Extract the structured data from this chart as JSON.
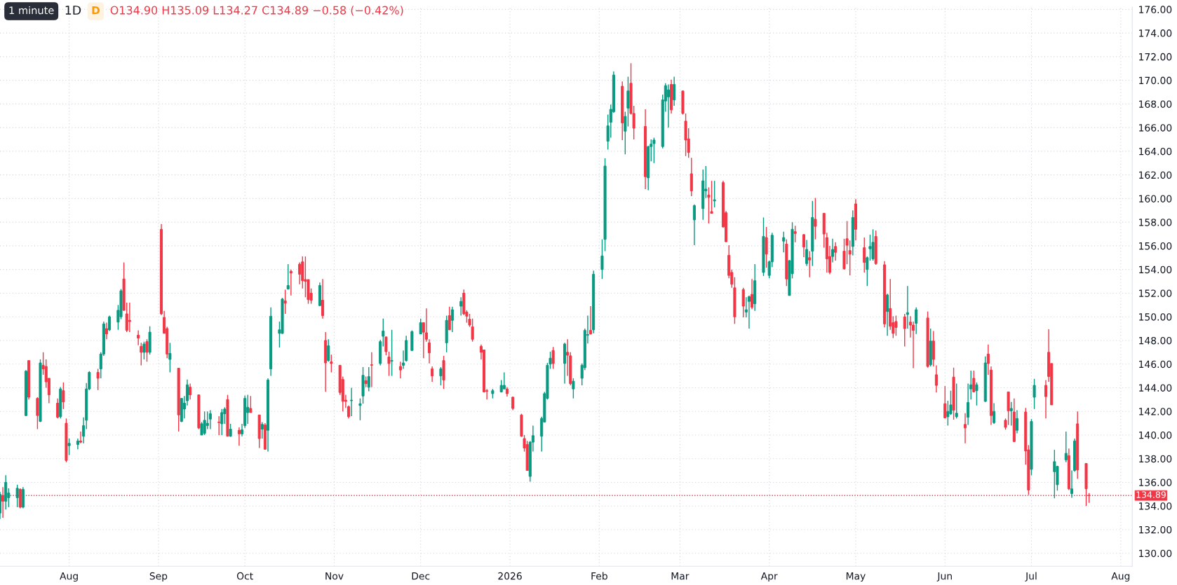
{
  "chart_data": {
    "type": "candlestick",
    "annotations": [
      "1 minute",
      "1D",
      "D",
      "O134.90 H135.09 L134.27 C134.89 −0.58 (−0.42%)"
    ],
    "x": [
      "2025-07-08",
      "2025-07-09",
      "2025-07-10",
      "2025-07-11",
      "2025-07-14",
      "2025-07-15",
      "2025-07-16",
      "2025-07-17",
      "2025-07-18",
      "2025-07-21",
      "2025-07-22",
      "2025-07-23",
      "2025-07-24",
      "2025-07-25",
      "2025-07-28",
      "2025-07-29",
      "2025-07-30",
      "2025-07-31",
      "2025-08-01",
      "2025-08-04",
      "2025-08-05",
      "2025-08-06",
      "2025-08-07",
      "2025-08-08",
      "2025-08-11",
      "2025-08-12",
      "2025-08-13",
      "2025-08-14",
      "2025-08-15",
      "2025-08-18",
      "2025-08-19",
      "2025-08-20",
      "2025-08-21",
      "2025-08-22",
      "2025-08-25",
      "2025-08-26",
      "2025-08-27",
      "2025-08-28",
      "2025-08-29",
      "2025-09-02",
      "2025-09-03",
      "2025-09-04",
      "2025-09-05",
      "2025-09-08",
      "2025-09-09",
      "2025-09-10",
      "2025-09-11",
      "2025-09-12",
      "2025-09-15",
      "2025-09-16",
      "2025-09-17",
      "2025-09-18",
      "2025-09-19",
      "2025-09-22",
      "2025-09-23",
      "2025-09-24",
      "2025-09-25",
      "2025-09-26",
      "2025-09-29",
      "2025-09-30",
      "2025-10-01",
      "2025-10-02",
      "2025-10-03",
      "2025-10-06",
      "2025-10-07",
      "2025-10-08",
      "2025-10-09",
      "2025-10-10",
      "2025-10-13",
      "2025-10-14",
      "2025-10-15",
      "2025-10-16",
      "2025-10-17",
      "2025-10-20",
      "2025-10-21",
      "2025-10-22",
      "2025-10-23",
      "2025-10-24",
      "2025-10-27",
      "2025-10-28",
      "2025-10-29",
      "2025-10-30",
      "2025-10-31",
      "2025-11-03",
      "2025-11-04",
      "2025-11-05",
      "2025-11-06",
      "2025-11-07",
      "2025-11-10",
      "2025-11-11",
      "2025-11-12",
      "2025-11-13",
      "2025-11-14",
      "2025-11-17",
      "2025-11-18",
      "2025-11-19",
      "2025-11-20",
      "2025-11-21",
      "2025-11-24",
      "2025-11-25",
      "2025-11-26",
      "2025-11-28",
      "2025-12-01",
      "2025-12-02",
      "2025-12-03",
      "2025-12-04",
      "2025-12-05",
      "2025-12-08",
      "2025-12-09",
      "2025-12-10",
      "2025-12-11",
      "2025-12-12",
      "2025-12-15",
      "2025-12-16",
      "2025-12-17",
      "2025-12-18",
      "2025-12-19",
      "2025-12-22",
      "2025-12-23",
      "2025-12-24",
      "2025-12-26",
      "2025-12-29",
      "2025-12-30",
      "2025-12-31",
      "2026-01-02",
      "2026-01-05",
      "2026-01-06",
      "2026-01-07",
      "2026-01-08",
      "2026-01-09",
      "2026-01-12",
      "2026-01-13",
      "2026-01-14",
      "2026-01-15",
      "2026-01-16",
      "2026-01-20",
      "2026-01-21",
      "2026-01-22",
      "2026-01-23",
      "2026-01-26",
      "2026-01-27",
      "2026-01-28",
      "2026-01-29",
      "2026-01-30",
      "2026-02-02",
      "2026-02-03",
      "2026-02-04",
      "2026-02-05",
      "2026-02-06",
      "2026-02-09",
      "2026-02-10",
      "2026-02-11",
      "2026-02-12",
      "2026-02-13",
      "2026-02-17",
      "2026-02-18",
      "2026-02-19",
      "2026-02-20",
      "2026-02-23",
      "2026-02-24",
      "2026-02-25",
      "2026-02-26",
      "2026-02-27",
      "2026-03-02",
      "2026-03-03",
      "2026-03-04",
      "2026-03-05",
      "2026-03-06",
      "2026-03-09",
      "2026-03-10",
      "2026-03-11",
      "2026-03-12",
      "2026-03-13",
      "2026-03-16",
      "2026-03-17",
      "2026-03-18",
      "2026-03-19",
      "2026-03-20",
      "2026-03-23",
      "2026-03-24",
      "2026-03-25",
      "2026-03-26",
      "2026-03-27",
      "2026-03-30",
      "2026-03-31",
      "2026-04-01",
      "2026-04-02",
      "2026-04-06",
      "2026-04-07",
      "2026-04-08",
      "2026-04-09",
      "2026-04-10",
      "2026-04-13",
      "2026-04-14",
      "2026-04-15",
      "2026-04-16",
      "2026-04-17",
      "2026-04-20",
      "2026-04-21",
      "2026-04-22",
      "2026-04-23",
      "2026-04-24",
      "2026-04-27",
      "2026-04-28",
      "2026-04-29",
      "2026-04-30",
      "2026-05-01",
      "2026-05-04",
      "2026-05-05",
      "2026-05-06",
      "2026-05-07",
      "2026-05-08",
      "2026-05-11",
      "2026-05-12",
      "2026-05-13",
      "2026-05-14",
      "2026-05-15",
      "2026-05-18",
      "2026-05-19",
      "2026-05-20",
      "2026-05-21",
      "2026-05-22",
      "2026-05-26",
      "2026-05-27",
      "2026-05-28",
      "2026-05-29",
      "2026-06-01",
      "2026-06-02",
      "2026-06-03",
      "2026-06-04",
      "2026-06-05",
      "2026-06-08",
      "2026-06-09",
      "2026-06-10",
      "2026-06-11",
      "2026-06-12",
      "2026-06-15",
      "2026-06-16",
      "2026-06-17",
      "2026-06-18",
      "2026-06-22",
      "2026-06-23",
      "2026-06-24",
      "2026-06-25",
      "2026-06-26",
      "2026-06-29",
      "2026-06-30",
      "2026-07-01",
      "2026-07-02",
      "2026-07-06",
      "2026-07-07",
      "2026-07-08",
      "2026-07-09",
      "2026-07-10",
      "2026-07-13",
      "2026-07-14",
      "2026-07-15",
      "2026-07-16",
      "2026-07-17",
      "2026-07-20",
      "2026-07-21"
    ],
    "ohlc": [
      [
        133.4,
        135.2,
        132.9,
        135.0
      ],
      [
        134.9,
        135.6,
        133.0,
        134.4
      ],
      [
        134.4,
        136.6,
        133.7,
        136.0
      ],
      [
        134.7,
        135.5,
        133.9,
        135.1
      ],
      [
        134.7,
        135.8,
        133.9,
        135.5
      ],
      [
        135.4,
        135.5,
        133.8,
        133.9
      ],
      [
        133.9,
        135.6,
        133.8,
        135.4
      ],
      [
        141.65,
        145.5,
        141.6,
        145.4
      ],
      [
        146.3,
        146.3,
        143.0,
        143.2
      ],
      [
        143.1,
        143.2,
        140.5,
        141.65
      ],
      [
        141.15,
        146.4,
        141.1,
        146.1
      ],
      [
        145.9,
        147.0,
        145.1,
        145.6
      ],
      [
        145.8,
        146.4,
        144.0,
        144.5
      ],
      [
        144.8,
        144.8,
        142.7,
        143.4
      ],
      [
        142.7,
        143.1,
        141.4,
        141.5
      ],
      [
        141.55,
        144.05,
        141.4,
        143.9
      ],
      [
        143.75,
        144.45,
        142.2,
        142.8
      ],
      [
        141.0,
        141.4,
        137.7,
        137.85
      ],
      [
        139.1,
        139.7,
        138.3,
        139.3
      ],
      [
        139.2,
        139.7,
        138.8,
        139.5
      ],
      [
        139.5,
        140.3,
        139.3,
        139.4
      ],
      [
        139.9,
        141.5,
        139.3,
        140.8
      ],
      [
        141.25,
        144.4,
        140.5,
        143.9
      ],
      [
        143.9,
        145.4,
        143.8,
        145.3
      ],
      [
        145.3,
        145.6,
        143.8,
        144.8
      ],
      [
        145.6,
        147.0,
        144.8,
        146.85
      ],
      [
        146.85,
        149.6,
        146.7,
        149.4
      ],
      [
        149.0,
        149.5,
        148.1,
        148.55
      ],
      [
        148.9,
        150.1,
        148.8,
        150.0
      ],
      [
        149.55,
        151.0,
        148.9,
        150.55
      ],
      [
        150.0,
        152.35,
        149.8,
        152.2
      ],
      [
        153.2,
        154.6,
        150.5,
        150.55
      ],
      [
        150.25,
        151.2,
        148.7,
        148.85
      ],
      [
        149.7,
        151.2,
        148.7,
        149.6
      ],
      [
        148.45,
        148.85,
        147.6,
        148.2
      ],
      [
        147.5,
        147.8,
        145.9,
        147.0
      ],
      [
        147.0,
        147.9,
        146.4,
        147.7
      ],
      [
        147.9,
        148.1,
        146.2,
        147.0
      ],
      [
        147.0,
        149.2,
        146.8,
        148.7
      ],
      [
        157.4,
        157.85,
        150.15,
        150.25
      ],
      [
        149.95,
        150.5,
        148.6,
        148.6
      ],
      [
        149.0,
        149.15,
        146.5,
        146.85
      ],
      [
        146.4,
        147.8,
        145.3,
        146.9
      ],
      [
        145.65,
        145.65,
        140.3,
        141.7
      ],
      [
        141.15,
        143.1,
        141.1,
        143.1
      ],
      [
        142.2,
        143.3,
        141.4,
        142.7
      ],
      [
        142.9,
        144.7,
        142.5,
        144.25
      ],
      [
        144.05,
        144.35,
        143.0,
        143.4
      ],
      [
        143.4,
        143.4,
        140.5,
        140.6
      ],
      [
        140.0,
        141.1,
        140.0,
        140.95
      ],
      [
        140.15,
        142.0,
        140.0,
        141.25
      ],
      [
        140.8,
        142.0,
        140.5,
        141.0
      ],
      [
        141.35,
        142.1,
        140.5,
        141.8
      ],
      [
        141.1,
        141.6,
        140.0,
        141.05
      ],
      [
        140.95,
        142.2,
        140.0,
        141.9
      ],
      [
        141.8,
        142.35,
        140.95,
        142.2
      ],
      [
        143.0,
        143.4,
        139.9,
        139.9
      ],
      [
        139.9,
        140.95,
        139.85,
        140.5
      ],
      [
        140.4,
        140.65,
        139.1,
        140.1
      ],
      [
        140.1,
        140.95,
        139.9,
        140.45
      ],
      [
        140.8,
        143.35,
        140.6,
        143.1
      ],
      [
        141.9,
        143.4,
        140.95,
        142.35
      ],
      [
        142.25,
        143.3,
        141.9,
        141.9
      ],
      [
        141.7,
        141.7,
        138.9,
        139.7
      ],
      [
        140.5,
        141.1,
        139.7,
        140.9
      ],
      [
        140.85,
        141.0,
        138.75,
        138.8
      ],
      [
        140.4,
        144.8,
        138.6,
        144.65
      ],
      [
        145.6,
        150.8,
        145.0,
        150.05
      ],
      [
        148.6,
        149.6,
        147.4,
        148.9
      ],
      [
        148.6,
        151.6,
        148.55,
        151.5
      ],
      [
        151.35,
        152.3,
        150.25,
        151.15
      ],
      [
        152.35,
        154.45,
        152.3,
        152.65
      ],
      [
        153.85,
        154.0,
        151.8,
        153.7
      ],
      [
        154.45,
        154.6,
        152.75,
        153.6
      ],
      [
        154.65,
        155.1,
        152.4,
        153.05
      ],
      [
        153.15,
        155.1,
        151.65,
        153.0
      ],
      [
        153.15,
        153.15,
        151.1,
        151.45
      ],
      [
        152.0,
        152.4,
        151.1,
        151.4
      ],
      [
        150.95,
        152.9,
        150.9,
        152.65
      ],
      [
        151.4,
        153.2,
        149.85,
        150.1
      ],
      [
        148.0,
        148.7,
        143.65,
        146.1
      ],
      [
        146.3,
        148.1,
        146.2,
        147.55
      ],
      [
        146.2,
        146.8,
        145.3,
        146.05
      ],
      [
        145.9,
        145.9,
        143.4,
        143.6
      ],
      [
        144.7,
        144.95,
        142.0,
        142.85
      ],
      [
        142.95,
        143.4,
        142.3,
        142.85
      ],
      [
        142.4,
        142.5,
        141.4,
        141.55
      ],
      [
        142.9,
        144.0,
        141.6,
        142.95
      ],
      [
        142.5,
        143.1,
        141.25,
        142.65
      ],
      [
        143.3,
        145.75,
        142.65,
        145.05
      ],
      [
        144.6,
        144.95,
        144.05,
        144.35
      ],
      [
        144.05,
        145.75,
        143.7,
        144.95
      ],
      [
        145.95,
        147.0,
        144.05,
        145.9
      ],
      [
        146.05,
        148.05,
        145.9,
        147.9
      ],
      [
        148.35,
        149.85,
        147.5,
        148.8
      ],
      [
        148.3,
        148.3,
        146.75,
        147.05
      ],
      [
        146.6,
        147.05,
        145.0,
        146.05
      ],
      [
        146.25,
        148.9,
        145.0,
        146.3
      ],
      [
        145.8,
        146.2,
        144.8,
        145.5
      ],
      [
        145.9,
        147.15,
        145.6,
        146.1
      ],
      [
        146.3,
        148.4,
        146.2,
        148.0
      ],
      [
        147.15,
        148.85,
        147.15,
        148.75
      ],
      [
        148.55,
        149.85,
        148.55,
        149.5
      ],
      [
        149.5,
        149.5,
        146.5,
        148.7
      ],
      [
        148.65,
        150.7,
        147.9,
        148.1
      ],
      [
        147.8,
        148.1,
        146.05,
        146.95
      ],
      [
        145.6,
        145.8,
        144.5,
        145.0
      ],
      [
        145.0,
        145.75,
        144.2,
        145.6
      ],
      [
        146.3,
        146.7,
        143.9,
        144.65
      ],
      [
        147.8,
        150.1,
        147.0,
        149.7
      ],
      [
        150.1,
        150.85,
        148.9,
        148.9
      ],
      [
        149.7,
        150.85,
        148.7,
        150.6
      ],
      [
        150.9,
        151.65,
        150.1,
        151.3
      ],
      [
        152.0,
        152.3,
        150.15,
        150.25
      ],
      [
        150.4,
        150.55,
        149.5,
        150.05
      ],
      [
        149.8,
        150.25,
        149.15,
        149.3
      ],
      [
        149.15,
        149.85,
        147.9,
        148.1
      ],
      [
        147.5,
        147.65,
        146.4,
        147.0
      ],
      [
        147.2,
        147.2,
        143.6,
        143.65
      ],
      [
        143.75,
        143.9,
        143.0,
        143.7
      ],
      [
        143.5,
        143.9,
        143.1,
        143.75
      ],
      [
        143.65,
        144.65,
        143.6,
        144.2
      ],
      [
        143.9,
        145.3,
        143.9,
        144.2
      ],
      [
        143.9,
        144.05,
        143.25,
        143.5
      ],
      [
        143.2,
        143.25,
        142.1,
        142.25
      ],
      [
        141.7,
        141.8,
        139.85,
        139.9
      ],
      [
        139.7,
        140.0,
        138.6,
        138.9
      ],
      [
        139.2,
        139.5,
        137.0,
        137.0
      ],
      [
        136.5,
        139.5,
        136.05,
        139.4
      ],
      [
        139.4,
        140.8,
        138.6,
        139.95
      ],
      [
        139.9,
        141.55,
        138.6,
        141.4
      ],
      [
        141.1,
        143.65,
        141.1,
        143.5
      ],
      [
        143.1,
        146.1,
        143.0,
        145.9
      ],
      [
        146.0,
        147.05,
        145.6,
        146.5
      ],
      [
        147.15,
        147.45,
        145.6,
        146.05
      ],
      [
        146.05,
        147.8,
        144.35,
        147.7
      ],
      [
        147.0,
        148.1,
        145.0,
        146.75
      ],
      [
        146.7,
        147.0,
        144.2,
        144.35
      ],
      [
        143.9,
        144.8,
        143.1,
        144.55
      ],
      [
        144.8,
        146.05,
        144.2,
        145.9
      ],
      [
        145.7,
        149.0,
        145.5,
        148.85
      ],
      [
        148.45,
        150.1,
        147.75,
        148.5
      ],
      [
        148.85,
        150.9,
        148.5,
        148.55
      ],
      [
        148.9,
        153.9,
        148.6,
        153.6
      ],
      [
        154.0,
        156.55,
        153.2,
        155.15
      ],
      [
        156.55,
        163.4,
        155.55,
        162.75
      ],
      [
        164.85,
        167.1,
        164.15,
        166.15
      ],
      [
        166.45,
        167.95,
        165.15,
        167.55
      ],
      [
        167.35,
        170.75,
        167.25,
        170.45
      ],
      [
        169.5,
        169.9,
        164.95,
        166.4
      ],
      [
        165.7,
        167.35,
        163.75,
        166.95
      ],
      [
        167.65,
        170.3,
        166.1,
        169.1
      ],
      [
        169.75,
        171.45,
        167.1,
        167.2
      ],
      [
        167.2,
        167.85,
        165.0,
        165.95
      ],
      [
        166.1,
        167.55,
        160.8,
        161.85
      ],
      [
        161.75,
        164.45,
        160.7,
        164.4
      ],
      [
        164.4,
        165.0,
        163.15,
        164.6
      ],
      [
        164.65,
        165.15,
        163.0,
        164.95
      ],
      [
        164.4,
        168.8,
        164.25,
        168.35
      ],
      [
        168.25,
        169.75,
        167.35,
        169.55
      ],
      [
        168.6,
        169.65,
        166.0,
        169.2
      ],
      [
        169.65,
        170.05,
        167.2,
        167.5
      ],
      [
        168.35,
        170.3,
        167.85,
        169.65
      ],
      [
        169.1,
        169.1,
        167.1,
        167.2
      ],
      [
        166.55,
        167.2,
        163.6,
        164.95
      ],
      [
        165.05,
        165.95,
        163.45,
        163.9
      ],
      [
        162.1,
        163.45,
        160.2,
        160.65
      ],
      [
        158.2,
        159.5,
        156.05,
        159.4
      ],
      [
        159.15,
        162.45,
        158.2,
        161.5
      ],
      [
        160.65,
        162.75,
        160.05,
        160.8
      ],
      [
        160.3,
        160.95,
        157.9,
        160.1
      ],
      [
        158.9,
        161.5,
        158.75,
        158.75
      ],
      [
        159.8,
        161.5,
        159.25,
        159.9
      ],
      [
        161.35,
        161.5,
        157.55,
        157.6
      ],
      [
        158.8,
        158.95,
        156.3,
        156.35
      ],
      [
        155.2,
        156.05,
        153.25,
        153.5
      ],
      [
        153.75,
        154.0,
        152.45,
        152.75
      ],
      [
        152.45,
        153.35,
        149.4,
        150.0
      ],
      [
        152.3,
        152.45,
        149.95,
        150.9
      ],
      [
        150.4,
        151.65,
        149.95,
        150.6
      ],
      [
        151.3,
        151.8,
        149.0,
        151.7
      ],
      [
        151.9,
        153.2,
        150.65,
        150.8
      ],
      [
        151.1,
        154.45,
        150.5,
        153.05
      ],
      [
        153.75,
        158.4,
        153.45,
        156.8
      ],
      [
        156.7,
        157.6,
        154.15,
        155.3
      ],
      [
        153.5,
        154.75,
        153.25,
        154.65
      ],
      [
        154.65,
        157.1,
        154.2,
        156.9
      ],
      [
        156.4,
        157.2,
        155.45,
        156.7
      ],
      [
        156.15,
        156.55,
        152.6,
        153.2
      ],
      [
        151.8,
        154.8,
        151.8,
        154.75
      ],
      [
        153.65,
        158.0,
        153.25,
        157.4
      ],
      [
        157.2,
        157.7,
        156.3,
        157.05
      ],
      [
        156.95,
        157.0,
        155.05,
        155.9
      ],
      [
        154.5,
        156.5,
        154.3,
        155.7
      ],
      [
        155.0,
        155.55,
        153.35,
        154.8
      ],
      [
        155.55,
        159.8,
        154.3,
        158.4
      ],
      [
        158.25,
        160.05,
        156.55,
        157.65
      ],
      [
        158.75,
        158.8,
        155.85,
        157.0
      ],
      [
        156.7,
        157.1,
        153.75,
        154.9
      ],
      [
        155.1,
        156.0,
        153.6,
        153.75
      ],
      [
        155.1,
        156.6,
        154.6,
        155.7
      ],
      [
        155.95,
        156.3,
        154.75,
        155.45
      ],
      [
        155.55,
        156.6,
        154.0,
        154.05
      ],
      [
        156.6,
        158.1,
        154.45,
        156.05
      ],
      [
        155.6,
        156.45,
        153.5,
        155.3
      ],
      [
        155.95,
        159.0,
        155.2,
        158.4
      ],
      [
        159.55,
        159.95,
        156.45,
        157.4
      ],
      [
        155.85,
        156.7,
        153.75,
        154.6
      ],
      [
        154.0,
        155.1,
        152.6,
        155.0
      ],
      [
        155.75,
        156.95,
        154.75,
        155.95
      ],
      [
        154.9,
        157.4,
        154.75,
        156.3
      ],
      [
        156.8,
        157.3,
        154.4,
        154.5
      ],
      [
        154.4,
        154.7,
        149.1,
        149.4
      ],
      [
        150.45,
        151.95,
        148.4,
        151.85
      ],
      [
        150.7,
        153.2,
        148.9,
        149.2
      ],
      [
        149.5,
        150.05,
        148.2,
        148.6
      ],
      [
        149.6,
        150.1,
        148.4,
        149.1
      ],
      [
        150.0,
        150.25,
        147.5,
        149.0
      ],
      [
        150.2,
        152.6,
        149.0,
        150.35
      ],
      [
        149.55,
        150.05,
        148.25,
        149.3
      ],
      [
        149.3,
        149.6,
        145.65,
        148.85
      ],
      [
        149.45,
        150.8,
        148.55,
        150.6
      ],
      [
        149.9,
        150.45,
        145.7,
        145.8
      ],
      [
        145.95,
        149.0,
        145.8,
        147.95
      ],
      [
        147.95,
        148.8,
        145.8,
        146.4
      ],
      [
        145.1,
        145.9,
        143.6,
        144.2
      ],
      [
        142.65,
        144.15,
        141.4,
        141.45
      ],
      [
        141.55,
        142.9,
        140.8,
        142.0
      ],
      [
        141.8,
        143.75,
        141.7,
        142.55
      ],
      [
        144.9,
        145.7,
        141.3,
        142.1
      ],
      [
        141.55,
        144.35,
        141.4,
        141.85
      ],
      [
        140.9,
        141.85,
        139.3,
        140.6
      ],
      [
        141.5,
        144.35,
        140.85,
        142.75
      ],
      [
        143.9,
        145.45,
        143.0,
        144.25
      ],
      [
        144.8,
        145.45,
        143.6,
        143.65
      ],
      [
        143.75,
        144.45,
        142.5,
        144.25
      ],
      [
        142.85,
        146.65,
        142.8,
        146.1
      ],
      [
        146.85,
        147.65,
        145.1,
        146.05
      ],
      [
        145.5,
        145.8,
        140.85,
        141.65
      ],
      [
        141.05,
        142.7,
        140.95,
        142.0
      ],
      [
        141.25,
        141.4,
        140.45,
        140.65
      ],
      [
        143.65,
        143.65,
        140.85,
        142.05
      ],
      [
        142.05,
        142.8,
        140.8,
        142.25
      ],
      [
        141.95,
        143.1,
        139.4,
        139.45
      ],
      [
        140.4,
        142.1,
        140.15,
        141.4
      ],
      [
        141.95,
        142.3,
        137.5,
        138.65
      ],
      [
        138.75,
        139.15,
        134.95,
        135.35
      ],
      [
        137.1,
        141.35,
        136.6,
        141.15
      ],
      [
        143.2,
        144.75,
        142.2,
        144.2
      ],
      [
        144.2,
        144.65,
        141.4,
        143.25
      ],
      [
        147.0,
        148.95,
        144.5,
        144.95
      ],
      [
        146.05,
        146.05,
        142.55,
        142.55
      ],
      [
        136.9,
        138.75,
        134.65,
        137.75
      ],
      [
        135.8,
        137.4,
        135.3,
        137.35
      ],
      [
        137.9,
        140.3,
        137.7,
        138.45
      ],
      [
        138.25,
        138.85,
        135.35,
        135.45
      ],
      [
        135.05,
        137.0,
        134.7,
        135.45
      ],
      [
        137.0,
        139.7,
        136.9,
        139.5
      ],
      [
        140.95,
        142.0,
        136.3,
        137.05
      ],
      [
        137.6,
        137.6,
        134.0,
        135.45
      ],
      [
        134.9,
        135.09,
        134.27,
        134.89
      ]
    ],
    "colors": [
      "#089981",
      "#f23645",
      "#089981",
      "#089981",
      "#089981",
      "#f23645",
      "#089981",
      "#089981",
      "#f23645",
      "#f23645",
      "#089981",
      "#f23645",
      "#f23645",
      "#f23645",
      "#f23645",
      "#089981",
      "#f23645",
      "#f23645",
      "#089981",
      "#089981",
      "#f23645",
      "#089981",
      "#089981",
      "#089981",
      "#f23645",
      "#089981",
      "#089981",
      "#f23645",
      "#089981",
      "#089981",
      "#089981",
      "#f23645",
      "#f23645",
      "#f23645",
      "#f23645",
      "#f23645",
      "#089981",
      "#f23645",
      "#089981",
      "#f23645",
      "#f23645",
      "#f23645",
      "#089981",
      "#f23645",
      "#089981",
      "#089981",
      "#089981",
      "#f23645",
      "#f23645",
      "#089981",
      "#089981",
      "#089981",
      "#089981",
      "#f23645",
      "#089981",
      "#089981",
      "#f23645",
      "#089981",
      "#f23645",
      "#089981",
      "#089981",
      "#089981",
      "#f23645",
      "#f23645",
      "#089981",
      "#f23645",
      "#089981",
      "#089981",
      "#089981",
      "#089981",
      "#f23645",
      "#089981",
      "#f23645",
      "#f23645",
      "#f23645",
      "#f23645",
      "#f23645",
      "#f23645",
      "#089981",
      "#f23645",
      "#f23645",
      "#089981",
      "#f23645",
      "#f23645",
      "#f23645",
      "#f23645",
      "#f23645",
      "#089981",
      "#089981",
      "#089981",
      "#f23645",
      "#089981",
      "#f23645",
      "#089981",
      "#089981",
      "#f23645",
      "#f23645",
      "#089981",
      "#f23645",
      "#089981",
      "#089981",
      "#089981",
      "#089981",
      "#f23645",
      "#f23645",
      "#f23645",
      "#f23645",
      "#089981",
      "#f23645",
      "#089981",
      "#f23645",
      "#089981",
      "#089981",
      "#f23645",
      "#f23645",
      "#f23645",
      "#f23645",
      "#f23645",
      "#f23645",
      "#f23645",
      "#089981",
      "#089981",
      "#089981",
      "#f23645",
      "#f23645",
      "#f23645",
      "#f23645",
      "#f23645",
      "#089981",
      "#089981",
      "#089981",
      "#089981",
      "#089981",
      "#089981",
      "#f23645",
      "#089981",
      "#f23645",
      "#f23645",
      "#089981",
      "#089981",
      "#089981",
      "#089981",
      "#f23645",
      "#089981",
      "#089981",
      "#089981",
      "#089981",
      "#089981",
      "#089981",
      "#f23645",
      "#089981",
      "#089981",
      "#f23645",
      "#f23645",
      "#f23645",
      "#089981",
      "#089981",
      "#089981",
      "#089981",
      "#089981",
      "#089981",
      "#f23645",
      "#089981",
      "#f23645",
      "#f23645",
      "#f23645",
      "#f23645",
      "#089981",
      "#089981",
      "#089981",
      "#f23645",
      "#f23645",
      "#089981",
      "#f23645",
      "#f23645",
      "#f23645",
      "#f23645",
      "#f23645",
      "#f23645",
      "#089981",
      "#089981",
      "#f23645",
      "#089981",
      "#089981",
      "#f23645",
      "#089981",
      "#089981",
      "#089981",
      "#f23645",
      "#089981",
      "#089981",
      "#f23645",
      "#f23645",
      "#089981",
      "#f23645",
      "#089981",
      "#f23645",
      "#f23645",
      "#f23645",
      "#f23645",
      "#089981",
      "#f23645",
      "#f23645",
      "#f23645",
      "#f23645",
      "#089981",
      "#f23645",
      "#f23645",
      "#089981",
      "#089981",
      "#089981",
      "#f23645",
      "#f23645",
      "#089981",
      "#f23645",
      "#f23645",
      "#f23645",
      "#f23645",
      "#089981",
      "#f23645",
      "#f23645",
      "#089981",
      "#f23645",
      "#089981",
      "#f23645",
      "#f23645",
      "#f23645",
      "#089981",
      "#089981",
      "#f23645",
      "#089981",
      "#f23645",
      "#089981",
      "#089981",
      "#f23645",
      "#089981",
      "#089981",
      "#f23645",
      "#f23645",
      "#089981",
      "#f23645",
      "#f23645",
      "#089981",
      "#f23645",
      "#089981",
      "#f23645",
      "#f23645",
      "#089981",
      "#089981",
      "#f23645",
      "#f23645",
      "#f23645",
      "#089981",
      "#089981",
      "#089981",
      "#f23645",
      "#089981",
      "#089981",
      "#f23645",
      "#f23645",
      "#f23645"
    ],
    "xlim": [
      "2025-07-08",
      "2026-08-05"
    ],
    "xticks": [
      {
        "value": "2025-08-01",
        "label": "Aug"
      },
      {
        "value": "2025-09-01",
        "label": "Sep"
      },
      {
        "value": "2025-10-01",
        "label": "Oct"
      },
      {
        "value": "2025-11-01",
        "label": "Nov"
      },
      {
        "value": "2025-12-01",
        "label": "Dec"
      },
      {
        "value": "2026-01-01",
        "label": "2026"
      },
      {
        "value": "2026-02-01",
        "label": "Feb"
      },
      {
        "value": "2026-03-01",
        "label": "Mar"
      },
      {
        "value": "2026-04-01",
        "label": "Apr"
      },
      {
        "value": "2026-05-01",
        "label": "May"
      },
      {
        "value": "2026-06-01",
        "label": "Jun"
      },
      {
        "value": "2026-07-01",
        "label": "Jul"
      },
      {
        "value": "2026-08-01",
        "label": "Aug"
      }
    ],
    "ylim": [
      128.9,
      176.2
    ],
    "yticks": [
      {
        "value": 130,
        "label": "130.00"
      },
      {
        "value": 132,
        "label": "132.00"
      },
      {
        "value": 134,
        "label": "134.00"
      },
      {
        "value": 136,
        "label": "136.00"
      },
      {
        "value": 138,
        "label": "138.00"
      },
      {
        "value": 140,
        "label": "140.00"
      },
      {
        "value": 142,
        "label": "142.00"
      },
      {
        "value": 144,
        "label": "144.00"
      },
      {
        "value": 146,
        "label": "146.00"
      },
      {
        "value": 148,
        "label": "148.00"
      },
      {
        "value": 150,
        "label": "150.00"
      },
      {
        "value": 152,
        "label": "152.00"
      },
      {
        "value": 154,
        "label": "154.00"
      },
      {
        "value": 156,
        "label": "156.00"
      },
      {
        "value": 158,
        "label": "158.00"
      },
      {
        "value": 160,
        "label": "160.00"
      },
      {
        "value": 162,
        "label": "162.00"
      },
      {
        "value": 164,
        "label": "164.00"
      },
      {
        "value": 166,
        "label": "166.00"
      },
      {
        "value": 168,
        "label": "168.00"
      },
      {
        "value": 170,
        "label": "170.00"
      },
      {
        "value": 172,
        "label": "172.00"
      },
      {
        "value": 174,
        "label": "174.00"
      },
      {
        "value": 176,
        "label": "176.00"
      }
    ],
    "grid": true,
    "ref_lines": [
      {
        "axis": "y",
        "value": 134.89,
        "label": "134.89",
        "color": "#f23645",
        "line_style": "dotted"
      }
    ]
  }
}
